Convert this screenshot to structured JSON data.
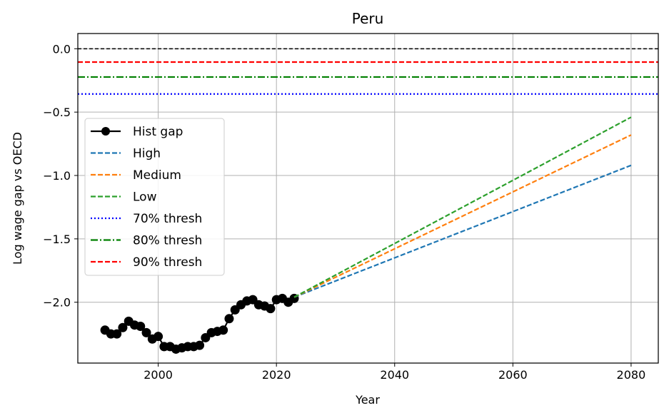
{
  "chart_data": {
    "type": "line",
    "title": "Peru",
    "xlabel": "Year",
    "ylabel": "Log wage gap vs OECD",
    "xlim": [
      1986.4,
      2084.6
    ],
    "ylim": [
      -2.48,
      0.12
    ],
    "xticks": [
      2000,
      2020,
      2040,
      2060,
      2080
    ],
    "yticks": [
      0.0,
      -0.5,
      -1.0,
      -1.5,
      -2.0
    ],
    "xtick_labels": [
      "2000",
      "2020",
      "2040",
      "2060",
      "2080"
    ],
    "ytick_labels": [
      "0.0",
      "−0.5",
      "−1.0",
      "−1.5",
      "−2.0"
    ],
    "grid": true,
    "legend_position": "center-left",
    "series": [
      {
        "name": "Hist gap",
        "style": "solid-marker",
        "color": "#000000",
        "x": [
          1991,
          1992,
          1993,
          1994,
          1995,
          1996,
          1997,
          1998,
          1999,
          2000,
          2001,
          2002,
          2003,
          2004,
          2005,
          2006,
          2007,
          2008,
          2009,
          2010,
          2011,
          2012,
          2013,
          2014,
          2015,
          2016,
          2017,
          2018,
          2019,
          2020,
          2021,
          2022,
          2023
        ],
        "y": [
          -2.22,
          -2.25,
          -2.25,
          -2.2,
          -2.15,
          -2.18,
          -2.19,
          -2.24,
          -2.29,
          -2.27,
          -2.35,
          -2.35,
          -2.37,
          -2.36,
          -2.35,
          -2.35,
          -2.34,
          -2.28,
          -2.24,
          -2.23,
          -2.22,
          -2.13,
          -2.06,
          -2.02,
          -1.99,
          -1.98,
          -2.02,
          -2.03,
          -2.05,
          -1.98,
          -1.97,
          -2.0,
          -1.97
        ]
      },
      {
        "name": "High",
        "style": "dashed",
        "color": "#1f77b4",
        "x": [
          2023,
          2080
        ],
        "y": [
          -1.96,
          -0.92
        ]
      },
      {
        "name": "Medium",
        "style": "dashed",
        "color": "#ff7f0e",
        "x": [
          2023,
          2080
        ],
        "y": [
          -1.96,
          -0.68
        ]
      },
      {
        "name": "Low",
        "style": "dashed",
        "color": "#2ca02c",
        "x": [
          2023,
          2080
        ],
        "y": [
          -1.96,
          -0.54
        ]
      }
    ],
    "thresholds": [
      {
        "name": "70% thresh",
        "style": "dotted",
        "color": "#0000ff",
        "y": -0.357
      },
      {
        "name": "80% thresh",
        "style": "dashdot",
        "color": "#008000",
        "y": -0.223
      },
      {
        "name": "90% thresh",
        "style": "dashed",
        "color": "#ff0000",
        "y": -0.105
      }
    ],
    "zero_line": {
      "style": "dashed",
      "color": "#000000",
      "y": 0.0
    },
    "legend": [
      "Hist gap",
      "High",
      "Medium",
      "Low",
      "70% thresh",
      "80% thresh",
      "90% thresh"
    ]
  }
}
